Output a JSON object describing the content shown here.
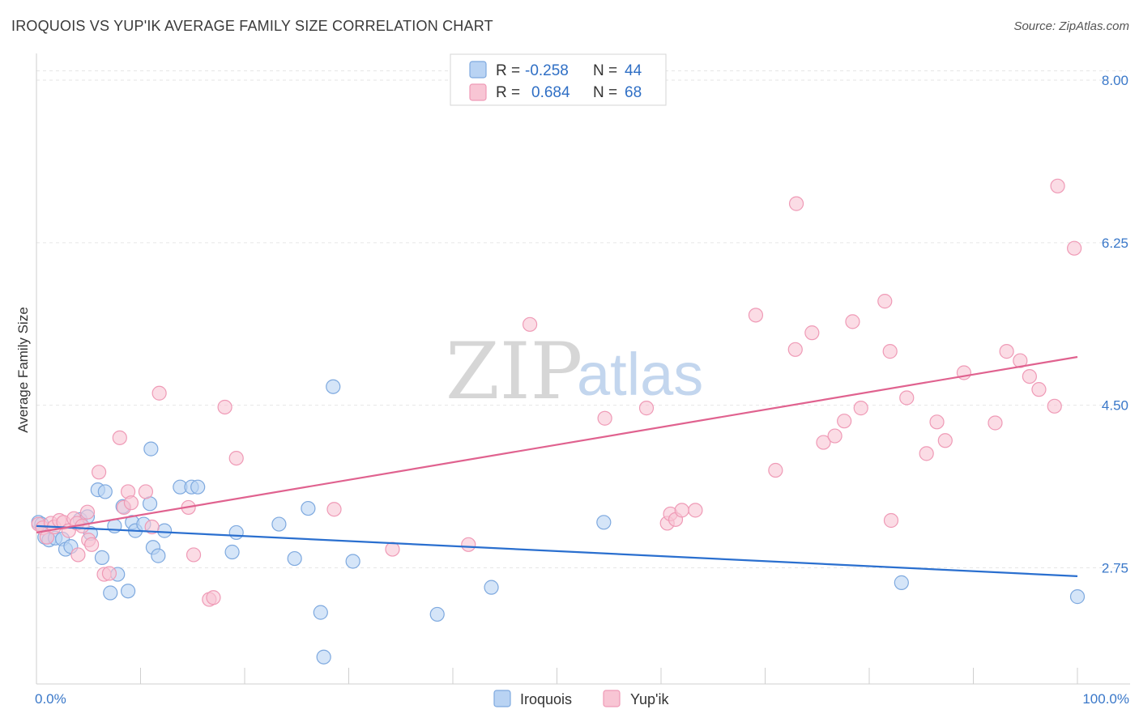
{
  "title": "IROQUOIS VS YUP'IK AVERAGE FAMILY SIZE CORRELATION CHART",
  "source": "Source: ZipAtlas.com",
  "watermark": {
    "zip": "ZIP",
    "atlas": "atlas"
  },
  "legend": {
    "rows": [
      {
        "r_label": "R =",
        "r_value": "-0.258",
        "n_label": "N =",
        "n_value": "44"
      },
      {
        "r_label": "R =",
        "r_value": "0.684",
        "n_label": "N =",
        "n_value": "68"
      }
    ]
  },
  "colors": {
    "iroquois_fill": "#b9d3f3",
    "iroquois_stroke": "#7ea9df",
    "iroquois_line": "#2a6fcf",
    "yupik_fill": "#f8c5d4",
    "yupik_stroke": "#ef9ab6",
    "yupik_line": "#e0628f",
    "tick_text": "#3a78c9"
  },
  "chart_data": {
    "type": "scatter",
    "title": "IROQUOIS VS YUP'IK AVERAGE FAMILY SIZE CORRELATION CHART",
    "xlabel": "",
    "ylabel": "Average Family Size",
    "xlim": [
      0,
      100
    ],
    "ylim": [
      1.5,
      8.2
    ],
    "x_tick_labels": [
      "0.0%",
      "100.0%"
    ],
    "y_ticks": [
      2.75,
      4.5,
      6.25,
      8.0
    ],
    "y_tick_labels": [
      "2.75",
      "4.50",
      "6.25",
      "8.00"
    ],
    "grid": true,
    "legend_position": "top-center",
    "series": [
      {
        "name": "Iroquois",
        "r": -0.258,
        "n": 44,
        "trend": {
          "x": [
            0,
            100
          ],
          "y": [
            3.2,
            2.66
          ]
        },
        "points": [
          [
            0.2,
            3.24
          ],
          [
            0.5,
            3.22
          ],
          [
            0.8,
            3.08
          ],
          [
            1.2,
            3.05
          ],
          [
            1.8,
            3.07
          ],
          [
            2.5,
            3.06
          ],
          [
            2.8,
            2.95
          ],
          [
            3.3,
            2.98
          ],
          [
            4.2,
            3.27
          ],
          [
            4.9,
            3.3
          ],
          [
            5.2,
            3.12
          ],
          [
            5.9,
            3.59
          ],
          [
            6.6,
            3.57
          ],
          [
            6.3,
            2.86
          ],
          [
            7.1,
            2.48
          ],
          [
            7.5,
            3.2
          ],
          [
            7.8,
            2.68
          ],
          [
            8.3,
            3.41
          ],
          [
            8.8,
            2.5
          ],
          [
            9.2,
            3.24
          ],
          [
            9.5,
            3.15
          ],
          [
            10.3,
            3.22
          ],
          [
            10.9,
            3.44
          ],
          [
            11.2,
            2.97
          ],
          [
            11.7,
            2.88
          ],
          [
            12.3,
            3.15
          ],
          [
            11.0,
            4.03
          ],
          [
            13.8,
            3.62
          ],
          [
            14.9,
            3.62
          ],
          [
            15.5,
            3.62
          ],
          [
            18.8,
            2.92
          ],
          [
            19.2,
            3.13
          ],
          [
            23.3,
            3.22
          ],
          [
            24.8,
            2.85
          ],
          [
            26.1,
            3.39
          ],
          [
            27.3,
            2.27
          ],
          [
            27.6,
            1.79
          ],
          [
            28.5,
            4.7
          ],
          [
            30.4,
            2.82
          ],
          [
            38.5,
            2.25
          ],
          [
            43.7,
            2.54
          ],
          [
            54.5,
            3.24
          ],
          [
            83.1,
            2.59
          ],
          [
            100.0,
            2.44
          ]
        ]
      },
      {
        "name": "Yup'ik",
        "r": 0.684,
        "n": 68,
        "trend": {
          "x": [
            0,
            100
          ],
          "y": [
            3.13,
            5.02
          ]
        },
        "points": [
          [
            0.2,
            3.22
          ],
          [
            0.6,
            3.18
          ],
          [
            1.0,
            3.08
          ],
          [
            1.4,
            3.23
          ],
          [
            1.7,
            3.19
          ],
          [
            2.2,
            3.26
          ],
          [
            2.6,
            3.24
          ],
          [
            3.1,
            3.15
          ],
          [
            3.6,
            3.28
          ],
          [
            3.9,
            3.23
          ],
          [
            4.0,
            2.89
          ],
          [
            4.4,
            3.2
          ],
          [
            4.9,
            3.35
          ],
          [
            5.0,
            3.05
          ],
          [
            5.3,
            3.0
          ],
          [
            6.0,
            3.78
          ],
          [
            6.5,
            2.68
          ],
          [
            7.0,
            2.69
          ],
          [
            8.0,
            4.15
          ],
          [
            8.4,
            3.4
          ],
          [
            8.8,
            3.57
          ],
          [
            9.1,
            3.45
          ],
          [
            10.5,
            3.57
          ],
          [
            11.1,
            3.19
          ],
          [
            11.8,
            4.63
          ],
          [
            14.6,
            3.4
          ],
          [
            15.1,
            2.89
          ],
          [
            16.6,
            2.41
          ],
          [
            17.0,
            2.43
          ],
          [
            18.1,
            4.48
          ],
          [
            19.2,
            3.93
          ],
          [
            28.6,
            3.38
          ],
          [
            34.2,
            2.95
          ],
          [
            41.5,
            3.0
          ],
          [
            47.4,
            5.37
          ],
          [
            54.6,
            4.36
          ],
          [
            58.6,
            4.47
          ],
          [
            60.6,
            3.23
          ],
          [
            60.9,
            3.33
          ],
          [
            61.4,
            3.27
          ],
          [
            62.0,
            3.37
          ],
          [
            63.3,
            3.37
          ],
          [
            69.1,
            5.47
          ],
          [
            71.0,
            3.8
          ],
          [
            72.9,
            5.1
          ],
          [
            73.0,
            6.67
          ],
          [
            74.5,
            5.28
          ],
          [
            75.6,
            4.1
          ],
          [
            76.7,
            4.17
          ],
          [
            77.6,
            4.33
          ],
          [
            78.4,
            5.4
          ],
          [
            79.2,
            4.47
          ],
          [
            81.5,
            5.62
          ],
          [
            82.0,
            5.08
          ],
          [
            82.1,
            3.26
          ],
          [
            83.6,
            4.58
          ],
          [
            85.5,
            3.98
          ],
          [
            86.5,
            4.32
          ],
          [
            87.3,
            4.12
          ],
          [
            89.1,
            4.85
          ],
          [
            92.1,
            4.31
          ],
          [
            93.2,
            5.08
          ],
          [
            94.5,
            4.98
          ],
          [
            95.4,
            4.81
          ],
          [
            96.3,
            4.67
          ],
          [
            97.8,
            4.49
          ],
          [
            98.1,
            6.86
          ],
          [
            99.7,
            6.19
          ]
        ]
      }
    ]
  }
}
